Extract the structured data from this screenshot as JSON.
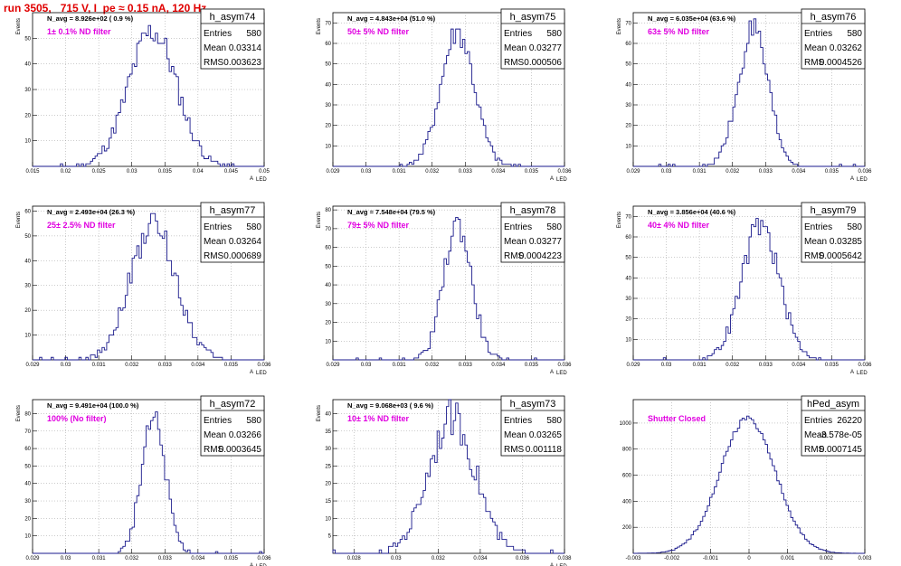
{
  "header": {
    "title": "run 3505,   715 V, I_pe ≈ 0.15 nA, 120 Hz"
  },
  "stat_labels": {
    "entries": "Entries",
    "mean": "Mean",
    "rms": "RMS"
  },
  "chart_data": [
    {
      "type": "bar",
      "name": "h_asym74",
      "n_avg": "N_avg = 8.926e+02 ( 0.9 %)",
      "filter": "1± 0.1% ND filter",
      "entries": "580",
      "mean": "0.03314",
      "rms": "0.003623",
      "xlim": [
        0.015,
        0.05
      ],
      "ylim": [
        0,
        60
      ],
      "xlabel": "A",
      "xsub": "LED",
      "ylabel": "Events",
      "xticks": [
        "0.015",
        "0.02",
        "0.025",
        "0.03",
        "0.035",
        "0.04",
        "0.045",
        "0.05"
      ],
      "yticks": [
        "10",
        "20",
        "30",
        "40",
        "50"
      ],
      "grid": true,
      "legend_position": "top-right"
    },
    {
      "type": "bar",
      "name": "h_asym75",
      "n_avg": "N_avg = 4.843e+04 (51.0 %)",
      "filter": "50± 5% ND filter",
      "entries": "580",
      "mean": "0.03277",
      "rms": "0.000506",
      "xlim": [
        0.029,
        0.036
      ],
      "ylim": [
        0,
        75
      ],
      "xlabel": "A",
      "xsub": "LED",
      "ylabel": "Events",
      "xticks": [
        "0.029",
        "0.03",
        "0.031",
        "0.032",
        "0.033",
        "0.034",
        "0.035",
        "0.036"
      ],
      "yticks": [
        "10",
        "20",
        "30",
        "40",
        "50",
        "60",
        "70"
      ],
      "grid": true,
      "legend_position": "top-right"
    },
    {
      "type": "bar",
      "name": "h_asym76",
      "n_avg": "N_avg = 6.035e+04 (63.6 %)",
      "filter": "63± 5% ND filter",
      "entries": "580",
      "mean": "0.03262",
      "rms": "0.0004526",
      "xlim": [
        0.029,
        0.036
      ],
      "ylim": [
        0,
        75
      ],
      "xlabel": "A",
      "xsub": "LED",
      "ylabel": "Events",
      "xticks": [
        "0.029",
        "0.03",
        "0.031",
        "0.032",
        "0.033",
        "0.034",
        "0.035",
        "0.036"
      ],
      "yticks": [
        "10",
        "20",
        "30",
        "40",
        "50",
        "60",
        "70"
      ],
      "grid": true,
      "legend_position": "top-right"
    },
    {
      "type": "bar",
      "name": "h_asym77",
      "n_avg": "N_avg = 2.493e+04 (26.3 %)",
      "filter": "25± 2.5% ND filter",
      "entries": "580",
      "mean": "0.03264",
      "rms": "0.000689",
      "xlim": [
        0.029,
        0.036
      ],
      "ylim": [
        0,
        62
      ],
      "xlabel": "A",
      "xsub": "LED",
      "ylabel": "Events",
      "xticks": [
        "0.029",
        "0.03",
        "0.031",
        "0.032",
        "0.033",
        "0.034",
        "0.035",
        "0.036"
      ],
      "yticks": [
        "10",
        "20",
        "30",
        "40",
        "50",
        "60"
      ],
      "grid": true,
      "legend_position": "top-right"
    },
    {
      "type": "bar",
      "name": "h_asym78",
      "n_avg": "N_avg = 7.548e+04 (79.5 %)",
      "filter": "79± 5% ND filter",
      "entries": "580",
      "mean": "0.03277",
      "rms": "0.0004223",
      "xlim": [
        0.029,
        0.036
      ],
      "ylim": [
        0,
        82
      ],
      "xlabel": "A",
      "xsub": "LED",
      "ylabel": "Events",
      "xticks": [
        "0.029",
        "0.03",
        "0.031",
        "0.032",
        "0.033",
        "0.034",
        "0.035",
        "0.036"
      ],
      "yticks": [
        "10",
        "20",
        "30",
        "40",
        "50",
        "60",
        "70",
        "80"
      ],
      "grid": true,
      "legend_position": "top-right"
    },
    {
      "type": "bar",
      "name": "h_asym79",
      "n_avg": "N_avg = 3.856e+04 (40.6 %)",
      "filter": "40± 4% ND filter",
      "entries": "580",
      "mean": "0.03285",
      "rms": "0.0005642",
      "xlim": [
        0.029,
        0.036
      ],
      "ylim": [
        0,
        75
      ],
      "xlabel": "A",
      "xsub": "LED",
      "ylabel": "Events",
      "xticks": [
        "0.029",
        "0.03",
        "0.031",
        "0.032",
        "0.033",
        "0.034",
        "0.035",
        "0.036"
      ],
      "yticks": [
        "10",
        "20",
        "30",
        "40",
        "50",
        "60",
        "70"
      ],
      "grid": true,
      "legend_position": "top-right"
    },
    {
      "type": "bar",
      "name": "h_asym72",
      "n_avg": "N_avg = 9.491e+04 (100.0 %)",
      "filter": "100% (No filter)",
      "entries": "580",
      "mean": "0.03266",
      "rms": "0.0003645",
      "xlim": [
        0.029,
        0.036
      ],
      "ylim": [
        0,
        88
      ],
      "xlabel": "A",
      "xsub": "LED",
      "ylabel": "Events",
      "xticks": [
        "0.029",
        "0.03",
        "0.031",
        "0.032",
        "0.033",
        "0.034",
        "0.035",
        "0.036"
      ],
      "yticks": [
        "10",
        "20",
        "30",
        "40",
        "50",
        "60",
        "70",
        "80"
      ],
      "grid": true,
      "legend_position": "top-right"
    },
    {
      "type": "bar",
      "name": "h_asym73",
      "n_avg": "N_avg = 9.068e+03 ( 9.6 %)",
      "filter": "10± 1% ND filter",
      "entries": "580",
      "mean": "0.03265",
      "rms": "0.001118",
      "xlim": [
        0.027,
        0.038
      ],
      "ylim": [
        0,
        44
      ],
      "xlabel": "A",
      "xsub": "LED",
      "ylabel": "Events",
      "xticks": [
        "0.028",
        "0.03",
        "0.032",
        "0.034",
        "0.036",
        "0.038"
      ],
      "yticks": [
        "5",
        "10",
        "15",
        "20",
        "25",
        "30",
        "35",
        "40"
      ],
      "grid": true,
      "legend_position": "top-right"
    },
    {
      "type": "bar",
      "name": "hPed_asym",
      "n_avg": "",
      "filter": "Shutter Closed",
      "entries": "26220",
      "mean": "-3.578e-05",
      "rms": "0.0007145",
      "xlim": [
        -0.003,
        0.003
      ],
      "ylim": [
        0,
        1180
      ],
      "xlabel": "",
      "xsub": "",
      "ylabel": "",
      "xticks": [
        "-0.003",
        "-0.002",
        "-0.001",
        "0",
        "0.001",
        "0.002",
        "0.003"
      ],
      "yticks": [
        "200",
        "400",
        "600",
        "800",
        "1000"
      ],
      "grid": true,
      "legend_position": "top-right"
    }
  ]
}
